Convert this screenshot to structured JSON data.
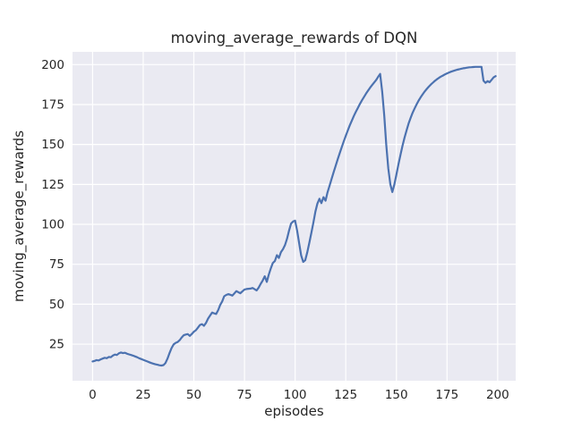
{
  "chart_data": {
    "type": "line",
    "title": "moving_average_rewards of DQN",
    "xlabel": "episodes",
    "ylabel": "moving_average_rewards",
    "x_ticks": [
      0,
      25,
      50,
      75,
      100,
      125,
      150,
      175,
      200
    ],
    "y_ticks": [
      25,
      50,
      75,
      100,
      125,
      150,
      175,
      200
    ],
    "xlim": [
      -9.9,
      208.9
    ],
    "ylim": [
      2.1,
      208.0
    ],
    "grid": true,
    "legend": "none",
    "style": {
      "figure_background": "#ffffff",
      "axes_background": "#eaeaf2",
      "grid_color": "#ffffff",
      "line_color": "#4c72b0",
      "text_color": "#262626"
    },
    "series": [
      {
        "name": "moving_average_rewards",
        "points": [
          [
            0,
            14.2
          ],
          [
            1,
            14.5
          ],
          [
            2,
            15.0
          ],
          [
            3,
            14.8
          ],
          [
            4,
            15.5
          ],
          [
            5,
            16.0
          ],
          [
            6,
            16.5
          ],
          [
            7,
            16.2
          ],
          [
            8,
            17.0
          ],
          [
            9,
            16.8
          ],
          [
            10,
            17.8
          ],
          [
            11,
            18.5
          ],
          [
            12,
            18.2
          ],
          [
            13,
            19.3
          ],
          [
            14,
            19.8
          ],
          [
            15,
            19.4
          ],
          [
            16,
            19.6
          ],
          [
            17,
            19.0
          ],
          [
            18,
            18.6
          ],
          [
            19,
            18.2
          ],
          [
            20,
            17.8
          ],
          [
            21,
            17.3
          ],
          [
            22,
            16.8
          ],
          [
            23,
            16.2
          ],
          [
            24,
            15.7
          ],
          [
            25,
            15.2
          ],
          [
            26,
            14.7
          ],
          [
            27,
            14.2
          ],
          [
            28,
            13.7
          ],
          [
            29,
            13.2
          ],
          [
            30,
            12.8
          ],
          [
            31,
            12.4
          ],
          [
            32,
            12.1
          ],
          [
            33,
            11.8
          ],
          [
            34,
            11.6
          ],
          [
            35,
            11.9
          ],
          [
            36,
            13.2
          ],
          [
            37,
            16.0
          ],
          [
            38,
            19.5
          ],
          [
            39,
            22.5
          ],
          [
            40,
            24.8
          ],
          [
            41,
            25.8
          ],
          [
            42,
            26.3
          ],
          [
            43,
            27.5
          ],
          [
            44,
            29.2
          ],
          [
            45,
            30.6
          ],
          [
            46,
            31.0
          ],
          [
            47,
            31.3
          ],
          [
            48,
            30.2
          ],
          [
            49,
            31.4
          ],
          [
            50,
            32.8
          ],
          [
            51,
            33.7
          ],
          [
            52,
            35.3
          ],
          [
            53,
            37.0
          ],
          [
            54,
            37.5
          ],
          [
            55,
            36.5
          ],
          [
            56,
            38.3
          ],
          [
            57,
            41.0
          ],
          [
            58,
            42.9
          ],
          [
            59,
            44.8
          ],
          [
            60,
            44.3
          ],
          [
            61,
            43.9
          ],
          [
            62,
            46.3
          ],
          [
            63,
            49.5
          ],
          [
            64,
            51.8
          ],
          [
            65,
            55.0
          ],
          [
            66,
            55.8
          ],
          [
            67,
            56.3
          ],
          [
            68,
            55.9
          ],
          [
            69,
            55.4
          ],
          [
            70,
            56.8
          ],
          [
            71,
            58.2
          ],
          [
            72,
            57.5
          ],
          [
            73,
            56.9
          ],
          [
            74,
            58.1
          ],
          [
            75,
            59.2
          ],
          [
            76,
            59.5
          ],
          [
            77,
            59.7
          ],
          [
            78,
            59.8
          ],
          [
            79,
            60.2
          ],
          [
            80,
            59.4
          ],
          [
            81,
            58.6
          ],
          [
            82,
            60.4
          ],
          [
            83,
            62.8
          ],
          [
            84,
            64.8
          ],
          [
            85,
            67.5
          ],
          [
            86,
            64.0
          ],
          [
            87,
            68.5
          ],
          [
            88,
            72.5
          ],
          [
            89,
            75.8
          ],
          [
            90,
            77.0
          ],
          [
            91,
            80.7
          ],
          [
            92,
            79.0
          ],
          [
            93,
            82.6
          ],
          [
            94,
            84.5
          ],
          [
            95,
            87.0
          ],
          [
            96,
            91.0
          ],
          [
            97,
            96.0
          ],
          [
            98,
            100.5
          ],
          [
            99,
            101.8
          ],
          [
            100,
            102.3
          ],
          [
            101,
            96.0
          ],
          [
            102,
            88.0
          ],
          [
            103,
            80.5
          ],
          [
            104,
            76.5
          ],
          [
            105,
            77.5
          ],
          [
            106,
            82.5
          ],
          [
            107,
            88.5
          ],
          [
            108,
            94.5
          ],
          [
            109,
            101.0
          ],
          [
            110,
            108.0
          ],
          [
            111,
            113.0
          ],
          [
            112,
            116.0
          ],
          [
            113,
            113.3
          ],
          [
            114,
            117.0
          ],
          [
            115,
            114.8
          ],
          [
            116,
            120.0
          ],
          [
            117,
            124.2
          ],
          [
            118,
            128.5
          ],
          [
            119,
            132.6
          ],
          [
            120,
            136.6
          ],
          [
            121,
            140.6
          ],
          [
            122,
            144.5
          ],
          [
            123,
            148.3
          ],
          [
            124,
            151.9
          ],
          [
            125,
            155.4
          ],
          [
            126,
            158.8
          ],
          [
            127,
            162.0
          ],
          [
            128,
            165.0
          ],
          [
            129,
            167.8
          ],
          [
            130,
            170.5
          ],
          [
            131,
            173.0
          ],
          [
            132,
            175.4
          ],
          [
            133,
            177.7
          ],
          [
            134,
            179.8
          ],
          [
            135,
            181.8
          ],
          [
            136,
            183.7
          ],
          [
            137,
            185.5
          ],
          [
            138,
            187.2
          ],
          [
            139,
            188.8
          ],
          [
            140,
            190.3
          ],
          [
            141,
            192.4
          ],
          [
            142,
            194.2
          ],
          [
            143,
            183.0
          ],
          [
            144,
            168.0
          ],
          [
            145,
            150.0
          ],
          [
            146,
            135.0
          ],
          [
            147,
            125.0
          ],
          [
            148,
            120.2
          ],
          [
            149,
            125.0
          ],
          [
            150,
            131.0
          ],
          [
            151,
            137.5
          ],
          [
            152,
            143.5
          ],
          [
            153,
            149.0
          ],
          [
            154,
            154.2
          ],
          [
            155,
            158.8
          ],
          [
            156,
            163.0
          ],
          [
            157,
            166.6
          ],
          [
            158,
            169.8
          ],
          [
            159,
            172.6
          ],
          [
            160,
            175.2
          ],
          [
            161,
            177.5
          ],
          [
            162,
            179.6
          ],
          [
            163,
            181.5
          ],
          [
            164,
            183.2
          ],
          [
            165,
            184.8
          ],
          [
            166,
            186.2
          ],
          [
            167,
            187.5
          ],
          [
            168,
            188.7
          ],
          [
            169,
            189.8
          ],
          [
            170,
            190.8
          ],
          [
            171,
            191.7
          ],
          [
            172,
            192.5
          ],
          [
            173,
            193.2
          ],
          [
            174,
            193.9
          ],
          [
            175,
            194.5
          ],
          [
            176,
            195.1
          ],
          [
            177,
            195.6
          ],
          [
            178,
            196.0
          ],
          [
            179,
            196.4
          ],
          [
            180,
            196.8
          ],
          [
            181,
            197.1
          ],
          [
            182,
            197.4
          ],
          [
            183,
            197.7
          ],
          [
            184,
            197.9
          ],
          [
            185,
            198.1
          ],
          [
            186,
            198.3
          ],
          [
            187,
            198.4
          ],
          [
            188,
            198.5
          ],
          [
            189,
            198.6
          ],
          [
            190,
            198.6
          ],
          [
            191,
            198.6
          ],
          [
            192,
            198.6
          ],
          [
            193,
            190.0
          ],
          [
            194,
            188.6
          ],
          [
            195,
            189.7
          ],
          [
            196,
            189.0
          ],
          [
            197,
            190.5
          ],
          [
            198,
            192.0
          ],
          [
            199,
            192.8
          ]
        ]
      }
    ]
  }
}
